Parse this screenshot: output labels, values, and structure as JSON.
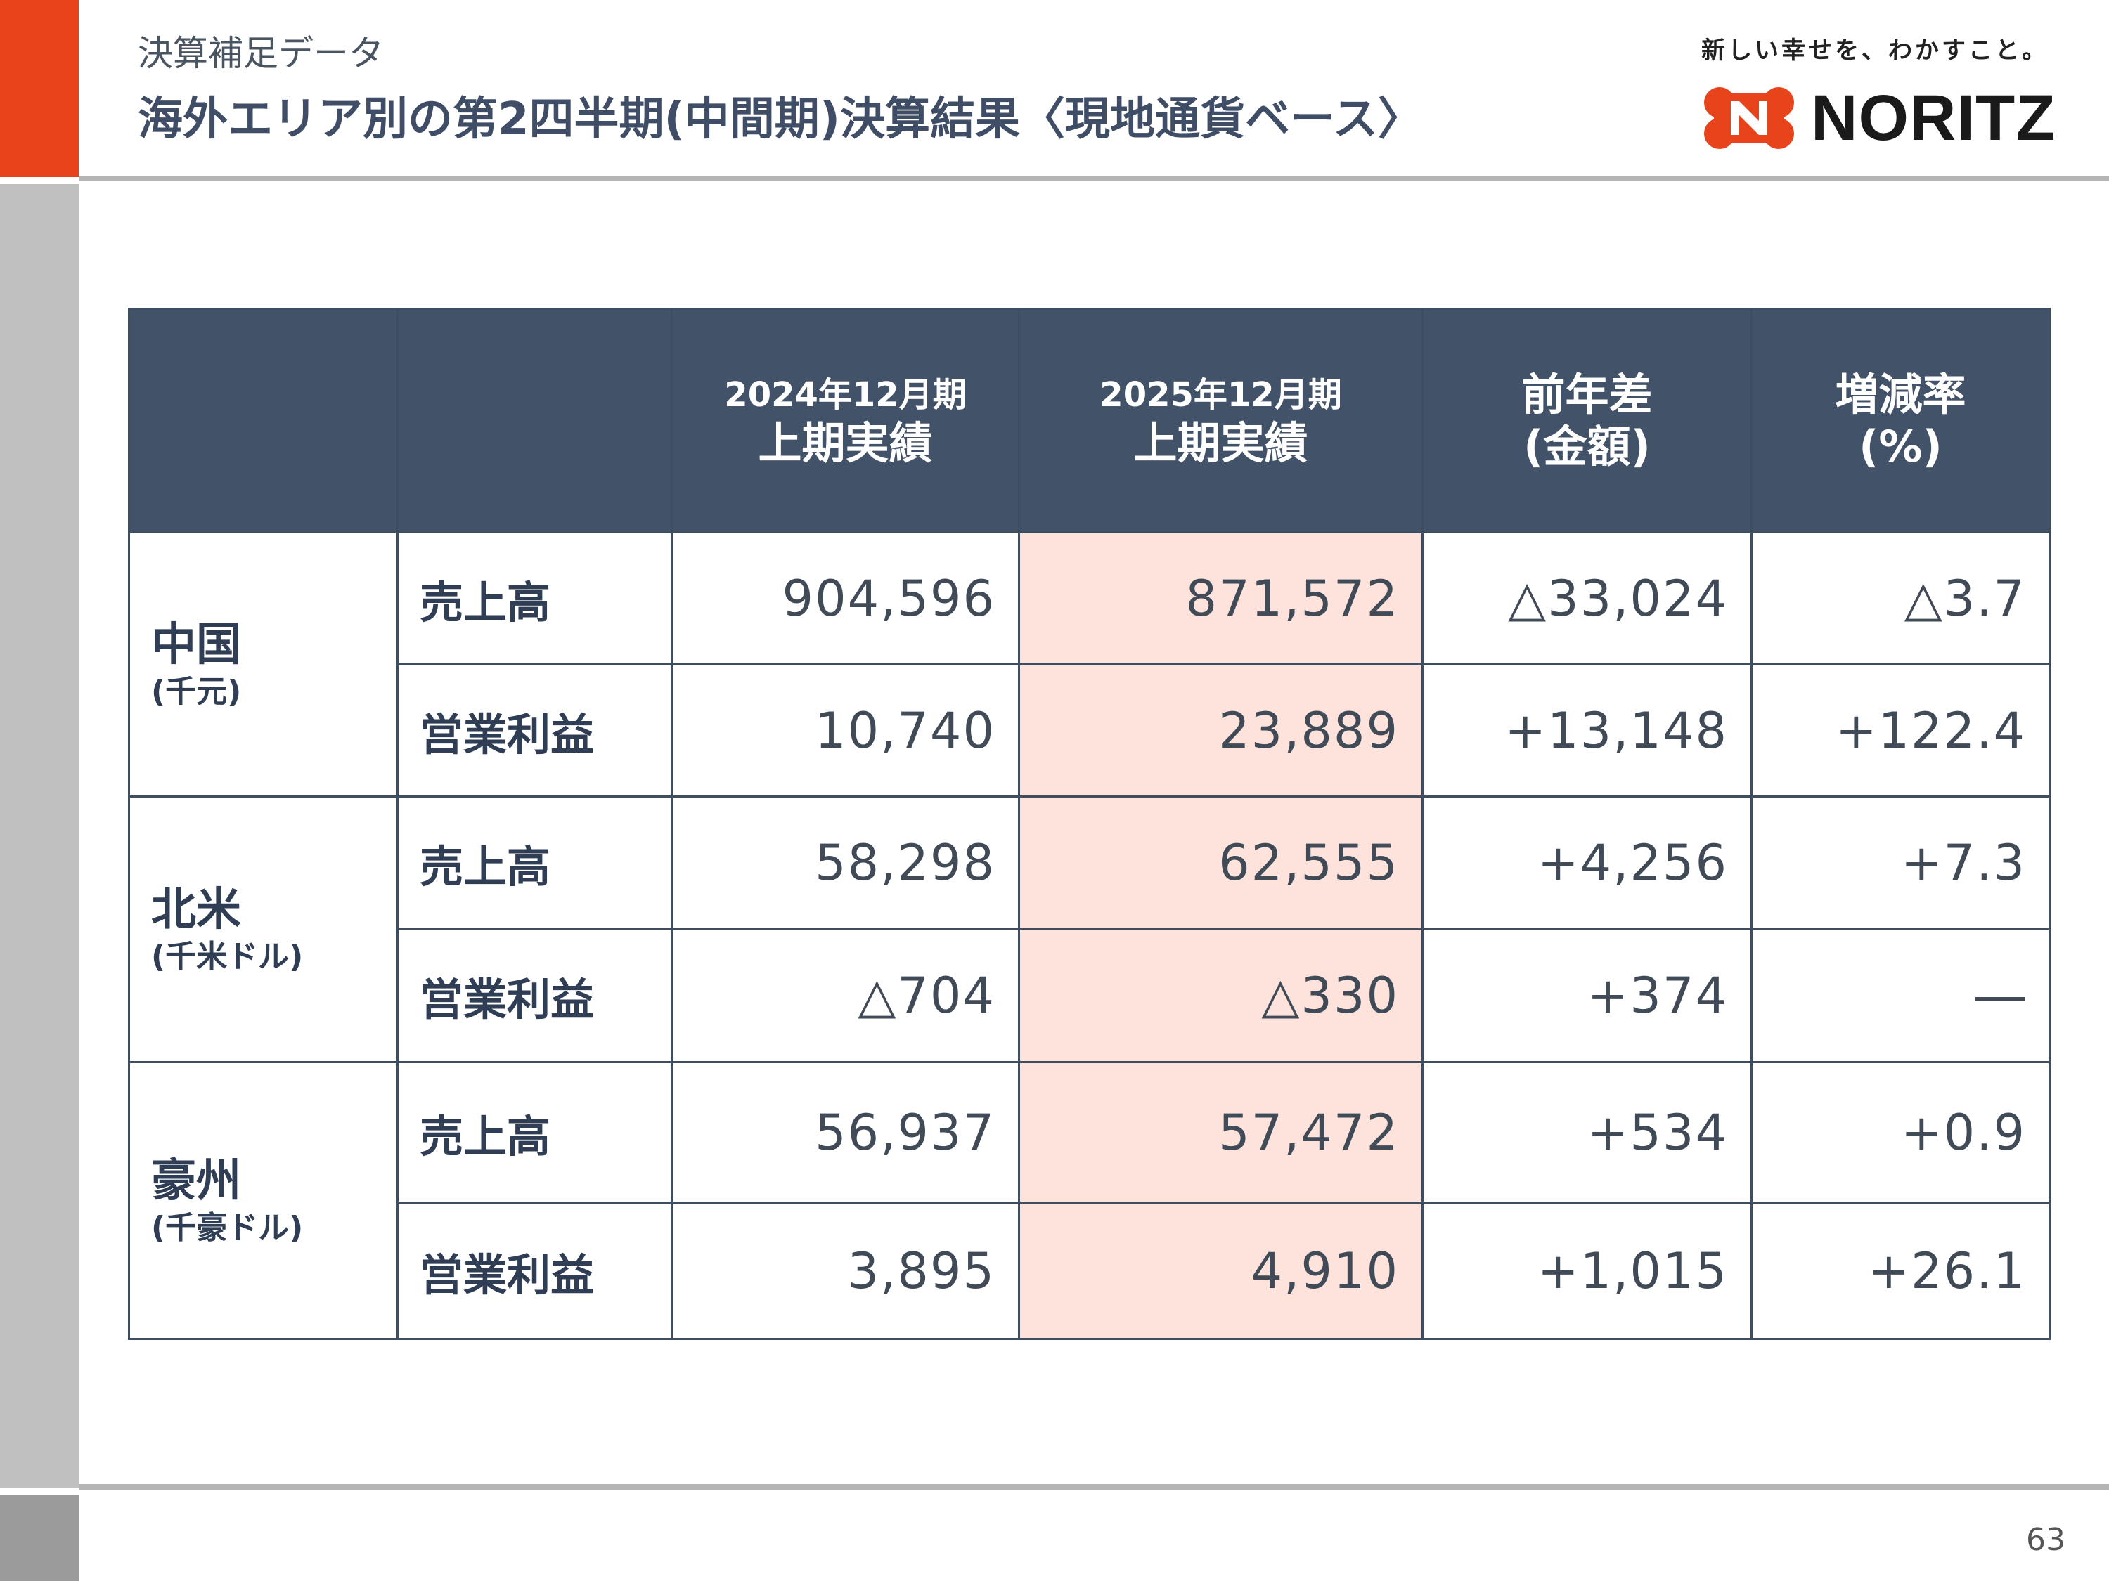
{
  "header": {
    "subtitle": "決算補足データ",
    "title": "海外エリア別の第2四半期(中間期)決算結果〈現地通貨ベース〉",
    "brand_tagline": "新しい幸せを、わかすこと。",
    "brand_name": "NORITZ",
    "brand_color": "#e8441c"
  },
  "table": {
    "headers": {
      "col3_line1": "2024年12月期",
      "col3_line2": "上期実績",
      "col4_line1": "2025年12月期",
      "col4_line2": "上期実績",
      "col5_line1": "前年差",
      "col5_line2": "(金額)",
      "col6_line1": "増減率",
      "col6_line2": "(%)"
    },
    "regions": [
      {
        "name": "中国",
        "unit": "(千元)",
        "rows": [
          {
            "metric": "売上高",
            "prev": "904,596",
            "curr": "871,572",
            "diff": "△33,024",
            "rate": "△3.7"
          },
          {
            "metric": "営業利益",
            "prev": "10,740",
            "curr": "23,889",
            "diff": "+13,148",
            "rate": "+122.4"
          }
        ]
      },
      {
        "name": "北米",
        "unit": "(千米ドル)",
        "rows": [
          {
            "metric": "売上高",
            "prev": "58,298",
            "curr": "62,555",
            "diff": "+4,256",
            "rate": "+7.3"
          },
          {
            "metric": "営業利益",
            "prev": "△704",
            "curr": "△330",
            "diff": "+374",
            "rate": "―"
          }
        ]
      },
      {
        "name": "豪州",
        "unit": "(千豪ドル)",
        "rows": [
          {
            "metric": "売上高",
            "prev": "56,937",
            "curr": "57,472",
            "diff": "+534",
            "rate": "+0.9"
          },
          {
            "metric": "営業利益",
            "prev": "3,895",
            "curr": "4,910",
            "diff": "+1,015",
            "rate": "+26.1"
          }
        ]
      }
    ],
    "highlight_color": "#fde3dc",
    "header_color": "#425268"
  },
  "footer": {
    "page_number": "63"
  }
}
